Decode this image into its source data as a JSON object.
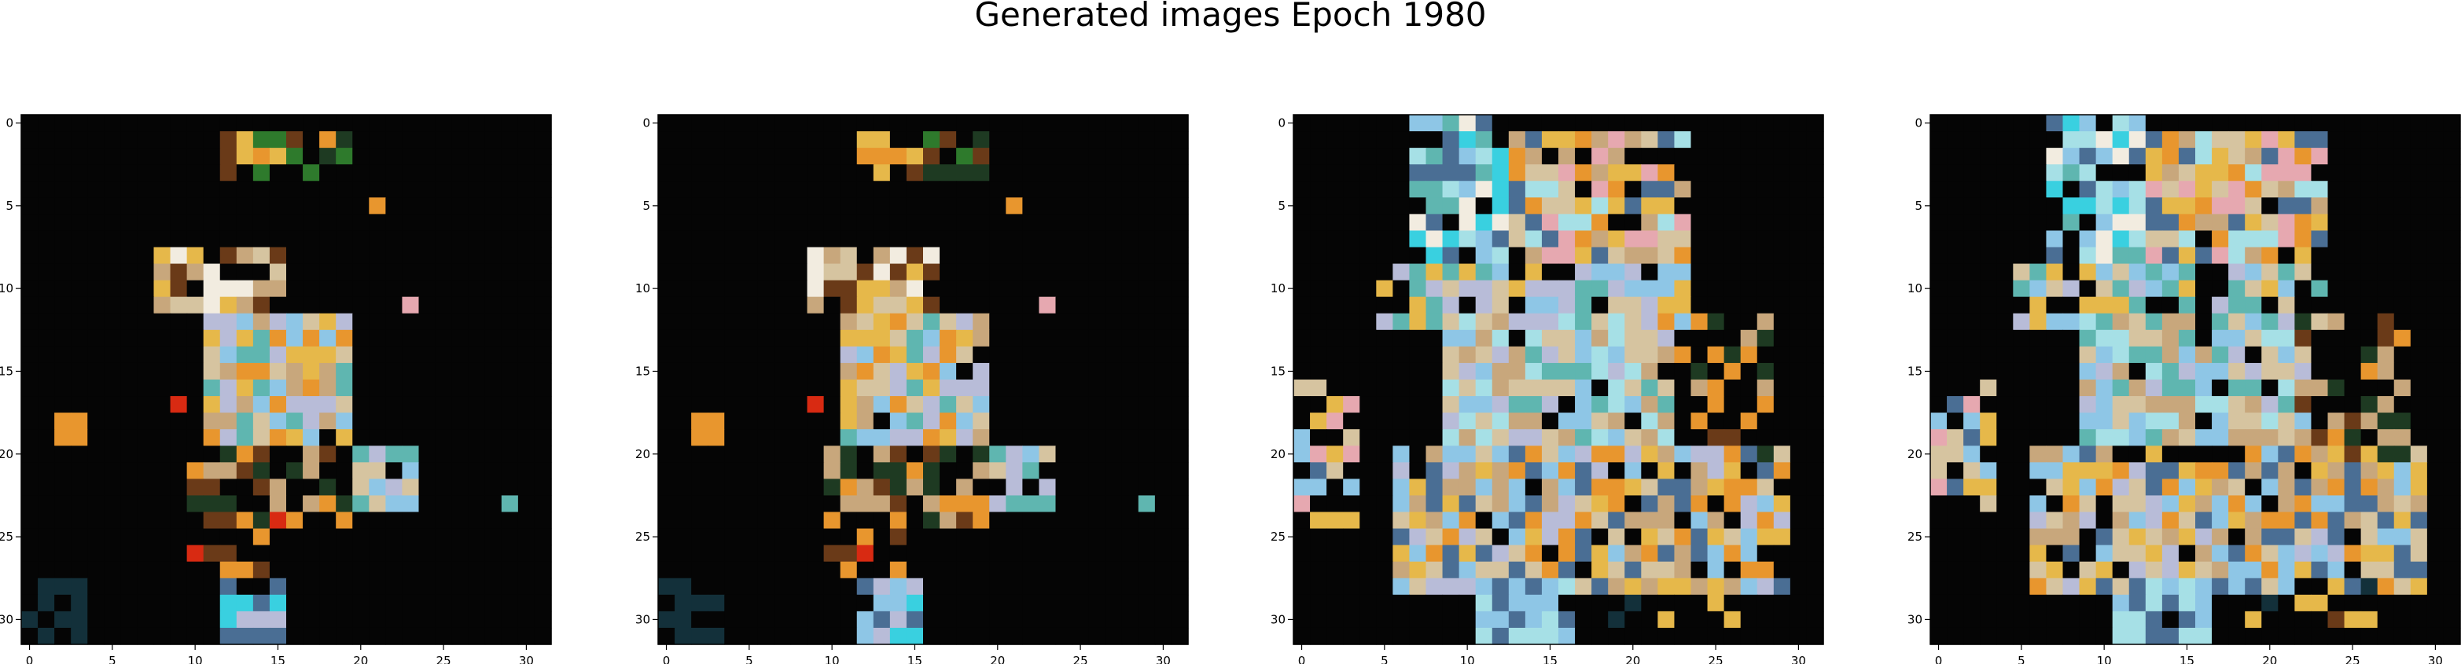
{
  "figure": {
    "title": "Generated images Epoch 1980",
    "background": "#ffffff",
    "pixel_grid_size": 32
  },
  "axes": {
    "x_ticks": [
      "0",
      "5",
      "10",
      "15",
      "20",
      "25",
      "30"
    ],
    "y_ticks": [
      "0",
      "5",
      "10",
      "15",
      "20",
      "25",
      "30"
    ],
    "x_range": [
      -0.5,
      31.5
    ],
    "y_range": [
      -0.5,
      31.5
    ],
    "y_inverted": true
  },
  "panels": [
    {
      "name": "panel-1",
      "style": "sparse",
      "shift": 0
    },
    {
      "name": "panel-2",
      "style": "sparse",
      "shift": 1
    },
    {
      "name": "panel-3",
      "style": "dense",
      "shift": 0
    },
    {
      "name": "panel-4",
      "style": "dense",
      "shift": 1
    }
  ],
  "palette": {
    "background": "#050505",
    "orange": "#e8962e",
    "gold": "#e6b84a",
    "tan": "#c8a77c",
    "beige": "#d6c4a0",
    "skyblue": "#8ec6e6",
    "cyan": "#39d0e0",
    "lightcyan": "#a6e0e6",
    "teal": "#5fb6b0",
    "steel": "#4a6e94",
    "lavender": "#b8bcd8",
    "pink": "#e6a8b0",
    "red": "#d82a12",
    "brown": "#6a3a18",
    "darkgreen": "#1e3a22",
    "green": "#2e7a2c",
    "white": "#f2ece0",
    "darkteal": "#13303a"
  }
}
